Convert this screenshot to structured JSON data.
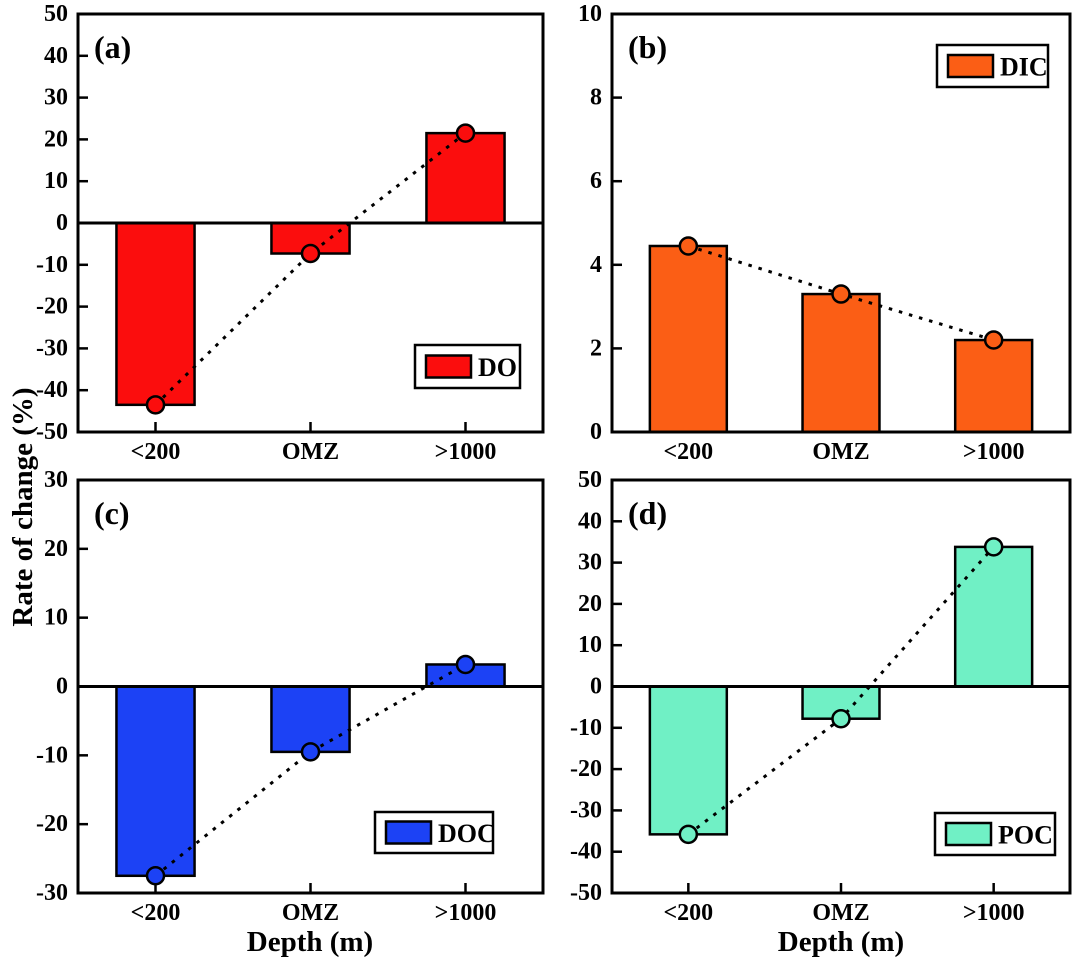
{
  "figure": {
    "ylabel": "Rate of change (%)",
    "xlabel": "Depth (m)",
    "background_color": "#ffffff",
    "axis_color": "#000000",
    "trend_line_style": "black dashed line with circle markers at bar values"
  },
  "chart_data": [
    {
      "type": "bar",
      "panel_label": "(a)",
      "legend": "DO",
      "legend_position": "bottom-right",
      "bar_color": "#FB0D0D",
      "categories": [
        "<200",
        "OMZ",
        ">1000"
      ],
      "values": [
        -43.5,
        -7.3,
        21.5
      ],
      "marker_values": [
        -43.5,
        -7.3,
        21.5
      ],
      "ylim": [
        -50,
        50
      ],
      "yticks": [
        50,
        40,
        30,
        20,
        10,
        0,
        -10,
        -20,
        -30,
        -40,
        -50
      ],
      "zero_line": true,
      "grid": false
    },
    {
      "type": "bar",
      "panel_label": "(b)",
      "legend": "DIC",
      "legend_position": "top-right",
      "bar_color": "#FB5E15",
      "categories": [
        "<200",
        "OMZ",
        ">1000"
      ],
      "values": [
        4.45,
        3.3,
        2.2
      ],
      "marker_values": [
        4.45,
        3.3,
        2.2
      ],
      "ylim": [
        0,
        10
      ],
      "yticks": [
        10,
        8,
        6,
        4,
        2,
        0
      ],
      "zero_line": false,
      "grid": false
    },
    {
      "type": "bar",
      "panel_label": "(c)",
      "legend": "DOC",
      "legend_position": "bottom-right",
      "bar_color": "#1C42F5",
      "categories": [
        "<200",
        "OMZ",
        ">1000"
      ],
      "values": [
        -27.5,
        -9.5,
        3.2
      ],
      "marker_values": [
        -27.5,
        -9.5,
        3.2
      ],
      "ylim": [
        -30,
        30
      ],
      "yticks": [
        30,
        20,
        10,
        0,
        -10,
        -20,
        -30
      ],
      "zero_line": true,
      "grid": false
    },
    {
      "type": "bar",
      "panel_label": "(d)",
      "legend": "POC",
      "legend_position": "bottom-right",
      "bar_color": "#70F0C5",
      "categories": [
        "<200",
        "OMZ",
        ">1000"
      ],
      "values": [
        -35.8,
        -7.8,
        33.8
      ],
      "marker_values": [
        -35.8,
        -7.8,
        33.8
      ],
      "ylim": [
        -50,
        50
      ],
      "yticks": [
        50,
        40,
        30,
        20,
        10,
        0,
        -10,
        -20,
        -30,
        -40,
        -50
      ],
      "zero_line": true,
      "grid": false
    }
  ]
}
